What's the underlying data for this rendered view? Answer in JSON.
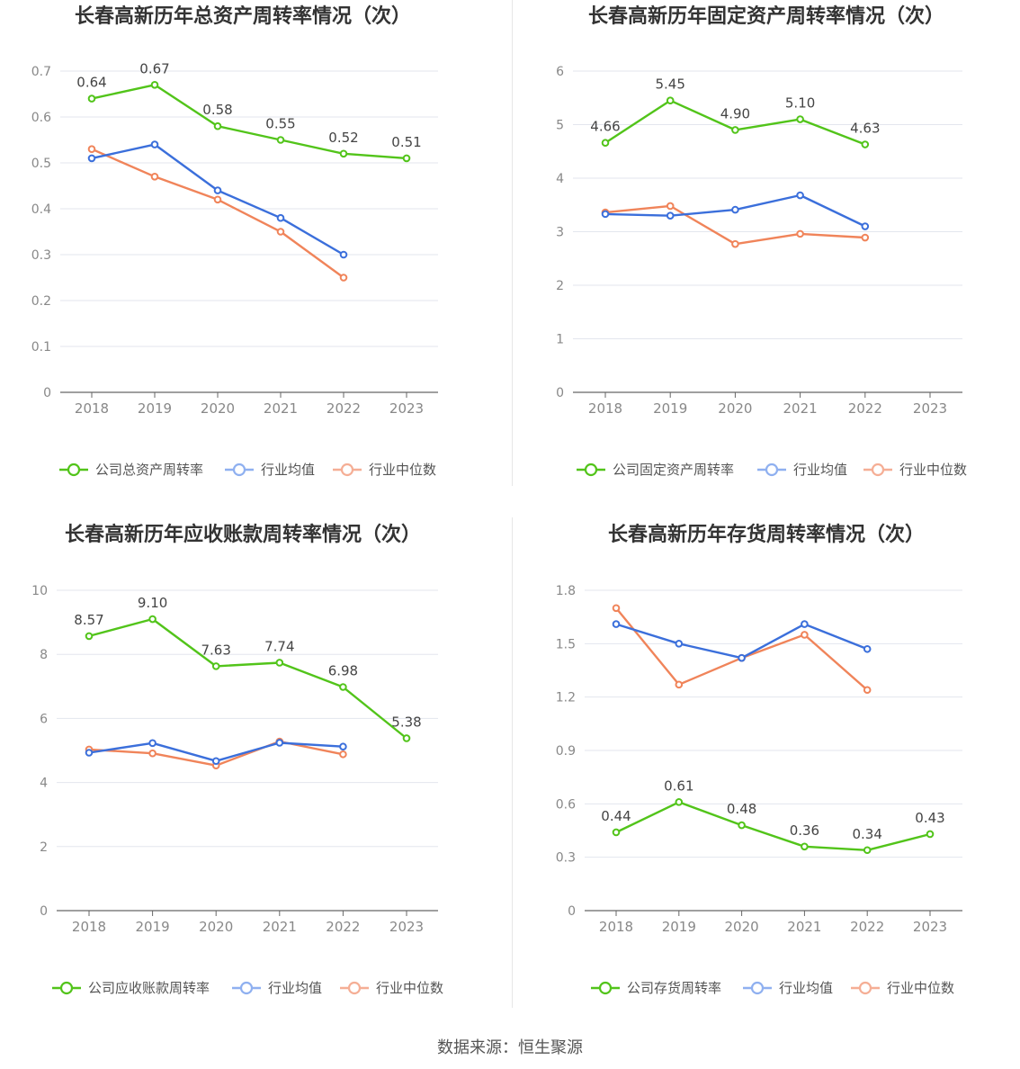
{
  "colors": {
    "company": "#52c41a",
    "avg": "#3b6fdb",
    "median": "#f0845a",
    "legend_avg": "#8fb0f0",
    "legend_median": "#f5ae95",
    "grid": "#e3e6ee",
    "axis": "#666666",
    "tick": "#888888",
    "title": "#333333",
    "label": "#444444"
  },
  "source_text": "数据来源：恒生聚源",
  "legend_common": {
    "avg": "行业均值",
    "median": "行业中位数"
  },
  "chart_data": [
    {
      "type": "line",
      "title": "长春高新历年总资产周转率情况（次）",
      "categories": [
        "2018",
        "2019",
        "2020",
        "2021",
        "2022",
        "2023"
      ],
      "yticks": [
        "0",
        "0.1",
        "0.2",
        "0.3",
        "0.4",
        "0.5",
        "0.6",
        "0.7"
      ],
      "ylim": [
        0,
        0.7
      ],
      "series": [
        {
          "name": "公司总资产周转率",
          "role": "company",
          "values": [
            0.64,
            0.67,
            0.58,
            0.55,
            0.52,
            0.51
          ],
          "labels": [
            "0.64",
            "0.67",
            "0.58",
            "0.55",
            "0.52",
            "0.51"
          ]
        },
        {
          "name": "行业均值",
          "role": "avg",
          "values": [
            0.51,
            0.54,
            0.44,
            0.38,
            0.3,
            null
          ]
        },
        {
          "name": "行业中位数",
          "role": "median",
          "values": [
            0.53,
            0.47,
            0.42,
            0.35,
            0.25,
            null
          ]
        }
      ]
    },
    {
      "type": "line",
      "title": "长春高新历年固定资产周转率情况（次）",
      "categories": [
        "2018",
        "2019",
        "2020",
        "2021",
        "2022",
        "2023"
      ],
      "yticks": [
        "0",
        "1",
        "2",
        "3",
        "4",
        "5",
        "6"
      ],
      "ylim": [
        0,
        6
      ],
      "series": [
        {
          "name": "公司固定资产周转率",
          "role": "company",
          "values": [
            4.66,
            5.45,
            4.9,
            5.1,
            4.63,
            null
          ],
          "labels": [
            "4.66",
            "5.45",
            "4.90",
            "5.10",
            "4.63",
            ""
          ]
        },
        {
          "name": "行业均值",
          "role": "avg",
          "values": [
            3.33,
            3.3,
            3.41,
            3.68,
            3.1,
            null
          ]
        },
        {
          "name": "行业中位数",
          "role": "median",
          "values": [
            3.36,
            3.48,
            2.77,
            2.96,
            2.89,
            null
          ]
        }
      ]
    },
    {
      "type": "line",
      "title": "长春高新历年应收账款周转率情况（次）",
      "categories": [
        "2018",
        "2019",
        "2020",
        "2021",
        "2022",
        "2023"
      ],
      "yticks": [
        "0",
        "2",
        "4",
        "6",
        "8",
        "10"
      ],
      "ylim": [
        0,
        10
      ],
      "series": [
        {
          "name": "公司应收账款周转率",
          "role": "company",
          "values": [
            8.57,
            9.1,
            7.63,
            7.74,
            6.98,
            5.38
          ],
          "labels": [
            "8.57",
            "9.10",
            "7.63",
            "7.74",
            "6.98",
            "5.38"
          ]
        },
        {
          "name": "行业均值",
          "role": "avg",
          "values": [
            4.93,
            5.23,
            4.67,
            5.24,
            5.12,
            null
          ]
        },
        {
          "name": "行业中位数",
          "role": "median",
          "values": [
            5.03,
            4.91,
            4.53,
            5.28,
            4.88,
            null
          ]
        }
      ]
    },
    {
      "type": "line",
      "title": "长春高新历年存货周转率情况（次）",
      "categories": [
        "2018",
        "2019",
        "2020",
        "2021",
        "2022",
        "2023"
      ],
      "yticks": [
        "0",
        "0.3",
        "0.6",
        "0.9",
        "1.2",
        "1.5",
        "1.8"
      ],
      "ylim": [
        0,
        1.8
      ],
      "series": [
        {
          "name": "公司存货周转率",
          "role": "company",
          "values": [
            0.44,
            0.61,
            0.48,
            0.36,
            0.34,
            0.43
          ],
          "labels": [
            "0.44",
            "0.61",
            "0.48",
            "0.36",
            "0.34",
            "0.43"
          ]
        },
        {
          "name": "行业均值",
          "role": "avg",
          "values": [
            1.61,
            1.5,
            1.42,
            1.61,
            1.47,
            null
          ]
        },
        {
          "name": "行业中位数",
          "role": "median",
          "values": [
            1.7,
            1.27,
            1.42,
            1.55,
            1.24,
            null
          ]
        }
      ]
    }
  ]
}
